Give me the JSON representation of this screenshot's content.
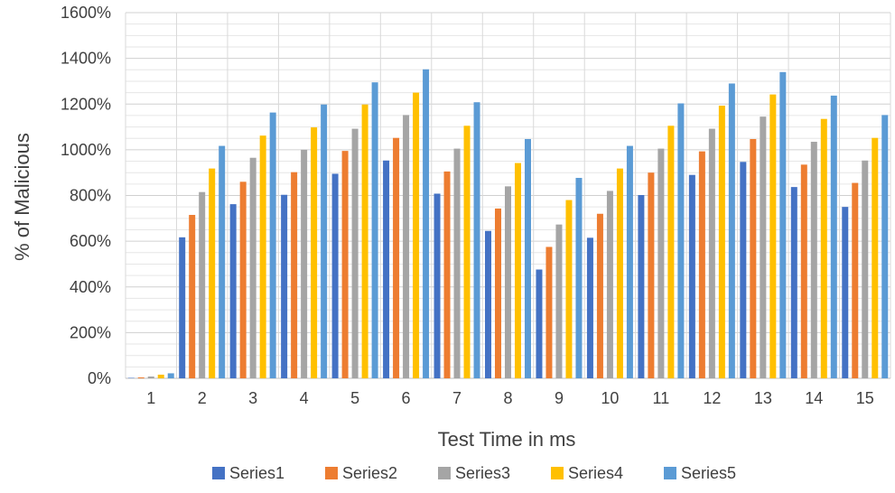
{
  "chart_data": {
    "type": "bar",
    "title": "",
    "xlabel": "Test Time in ms",
    "ylabel": "% of Malicious",
    "ylim": [
      0,
      1600
    ],
    "y_ticks": [
      0,
      200,
      400,
      600,
      800,
      1000,
      1200,
      1400,
      1600
    ],
    "y_tick_labels": [
      "0%",
      "200%",
      "400%",
      "600%",
      "800%",
      "1000%",
      "1200%",
      "1400%",
      "1600%"
    ],
    "grid": true,
    "legend_position": "bottom",
    "categories": [
      "1",
      "2",
      "3",
      "4",
      "5",
      "6",
      "7",
      "8",
      "9",
      "10",
      "11",
      "12",
      "13",
      "14",
      "15"
    ],
    "series": [
      {
        "name": "Series1",
        "color": "#4472C4",
        "values": [
          2,
          617,
          762,
          803,
          895,
          953,
          808,
          645,
          476,
          615,
          802,
          890,
          947,
          837,
          750
        ]
      },
      {
        "name": "Series2",
        "color": "#ED7D31",
        "values": [
          4,
          715,
          860,
          902,
          995,
          1052,
          905,
          743,
          575,
          720,
          900,
          993,
          1047,
          935,
          855
        ]
      },
      {
        "name": "Series3",
        "color": "#A5A5A5",
        "values": [
          8,
          815,
          965,
          1000,
          1092,
          1152,
          1005,
          840,
          673,
          820,
          1005,
          1092,
          1145,
          1035,
          953
        ]
      },
      {
        "name": "Series4",
        "color": "#FFC000",
        "values": [
          16,
          918,
          1062,
          1098,
          1198,
          1250,
          1105,
          942,
          780,
          918,
          1105,
          1193,
          1242,
          1135,
          1052
        ]
      },
      {
        "name": "Series5",
        "color": "#5B9BD5",
        "values": [
          22,
          1017,
          1163,
          1198,
          1295,
          1352,
          1208,
          1047,
          877,
          1017,
          1203,
          1290,
          1340,
          1237,
          1152
        ]
      }
    ]
  }
}
